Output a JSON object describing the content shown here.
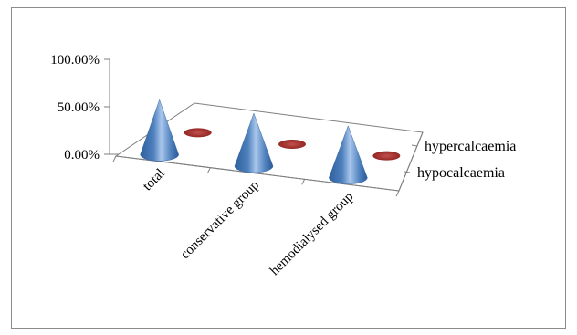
{
  "chart_data": {
    "type": "bar",
    "style": "3d-cone",
    "categories": [
      "total",
      "conservative group",
      "hemodialysed group"
    ],
    "series": [
      {
        "name": "hypocalcaemia",
        "values": [
          0.55,
          0.53,
          0.52
        ],
        "color": "#4f81bd"
      },
      {
        "name": "hypercalcaemia",
        "values": [
          0.0,
          0.0,
          0.0
        ],
        "color": "#c0504d"
      }
    ],
    "ytick_labels": [
      "0.00%",
      "50.00%",
      "100.00%"
    ],
    "yticks": [
      0,
      0.5,
      1.0
    ],
    "ylim": [
      0,
      1.0
    ],
    "title": "",
    "xlabel": "",
    "ylabel": "",
    "grid": false,
    "legend": "right (depth axis labels)"
  }
}
